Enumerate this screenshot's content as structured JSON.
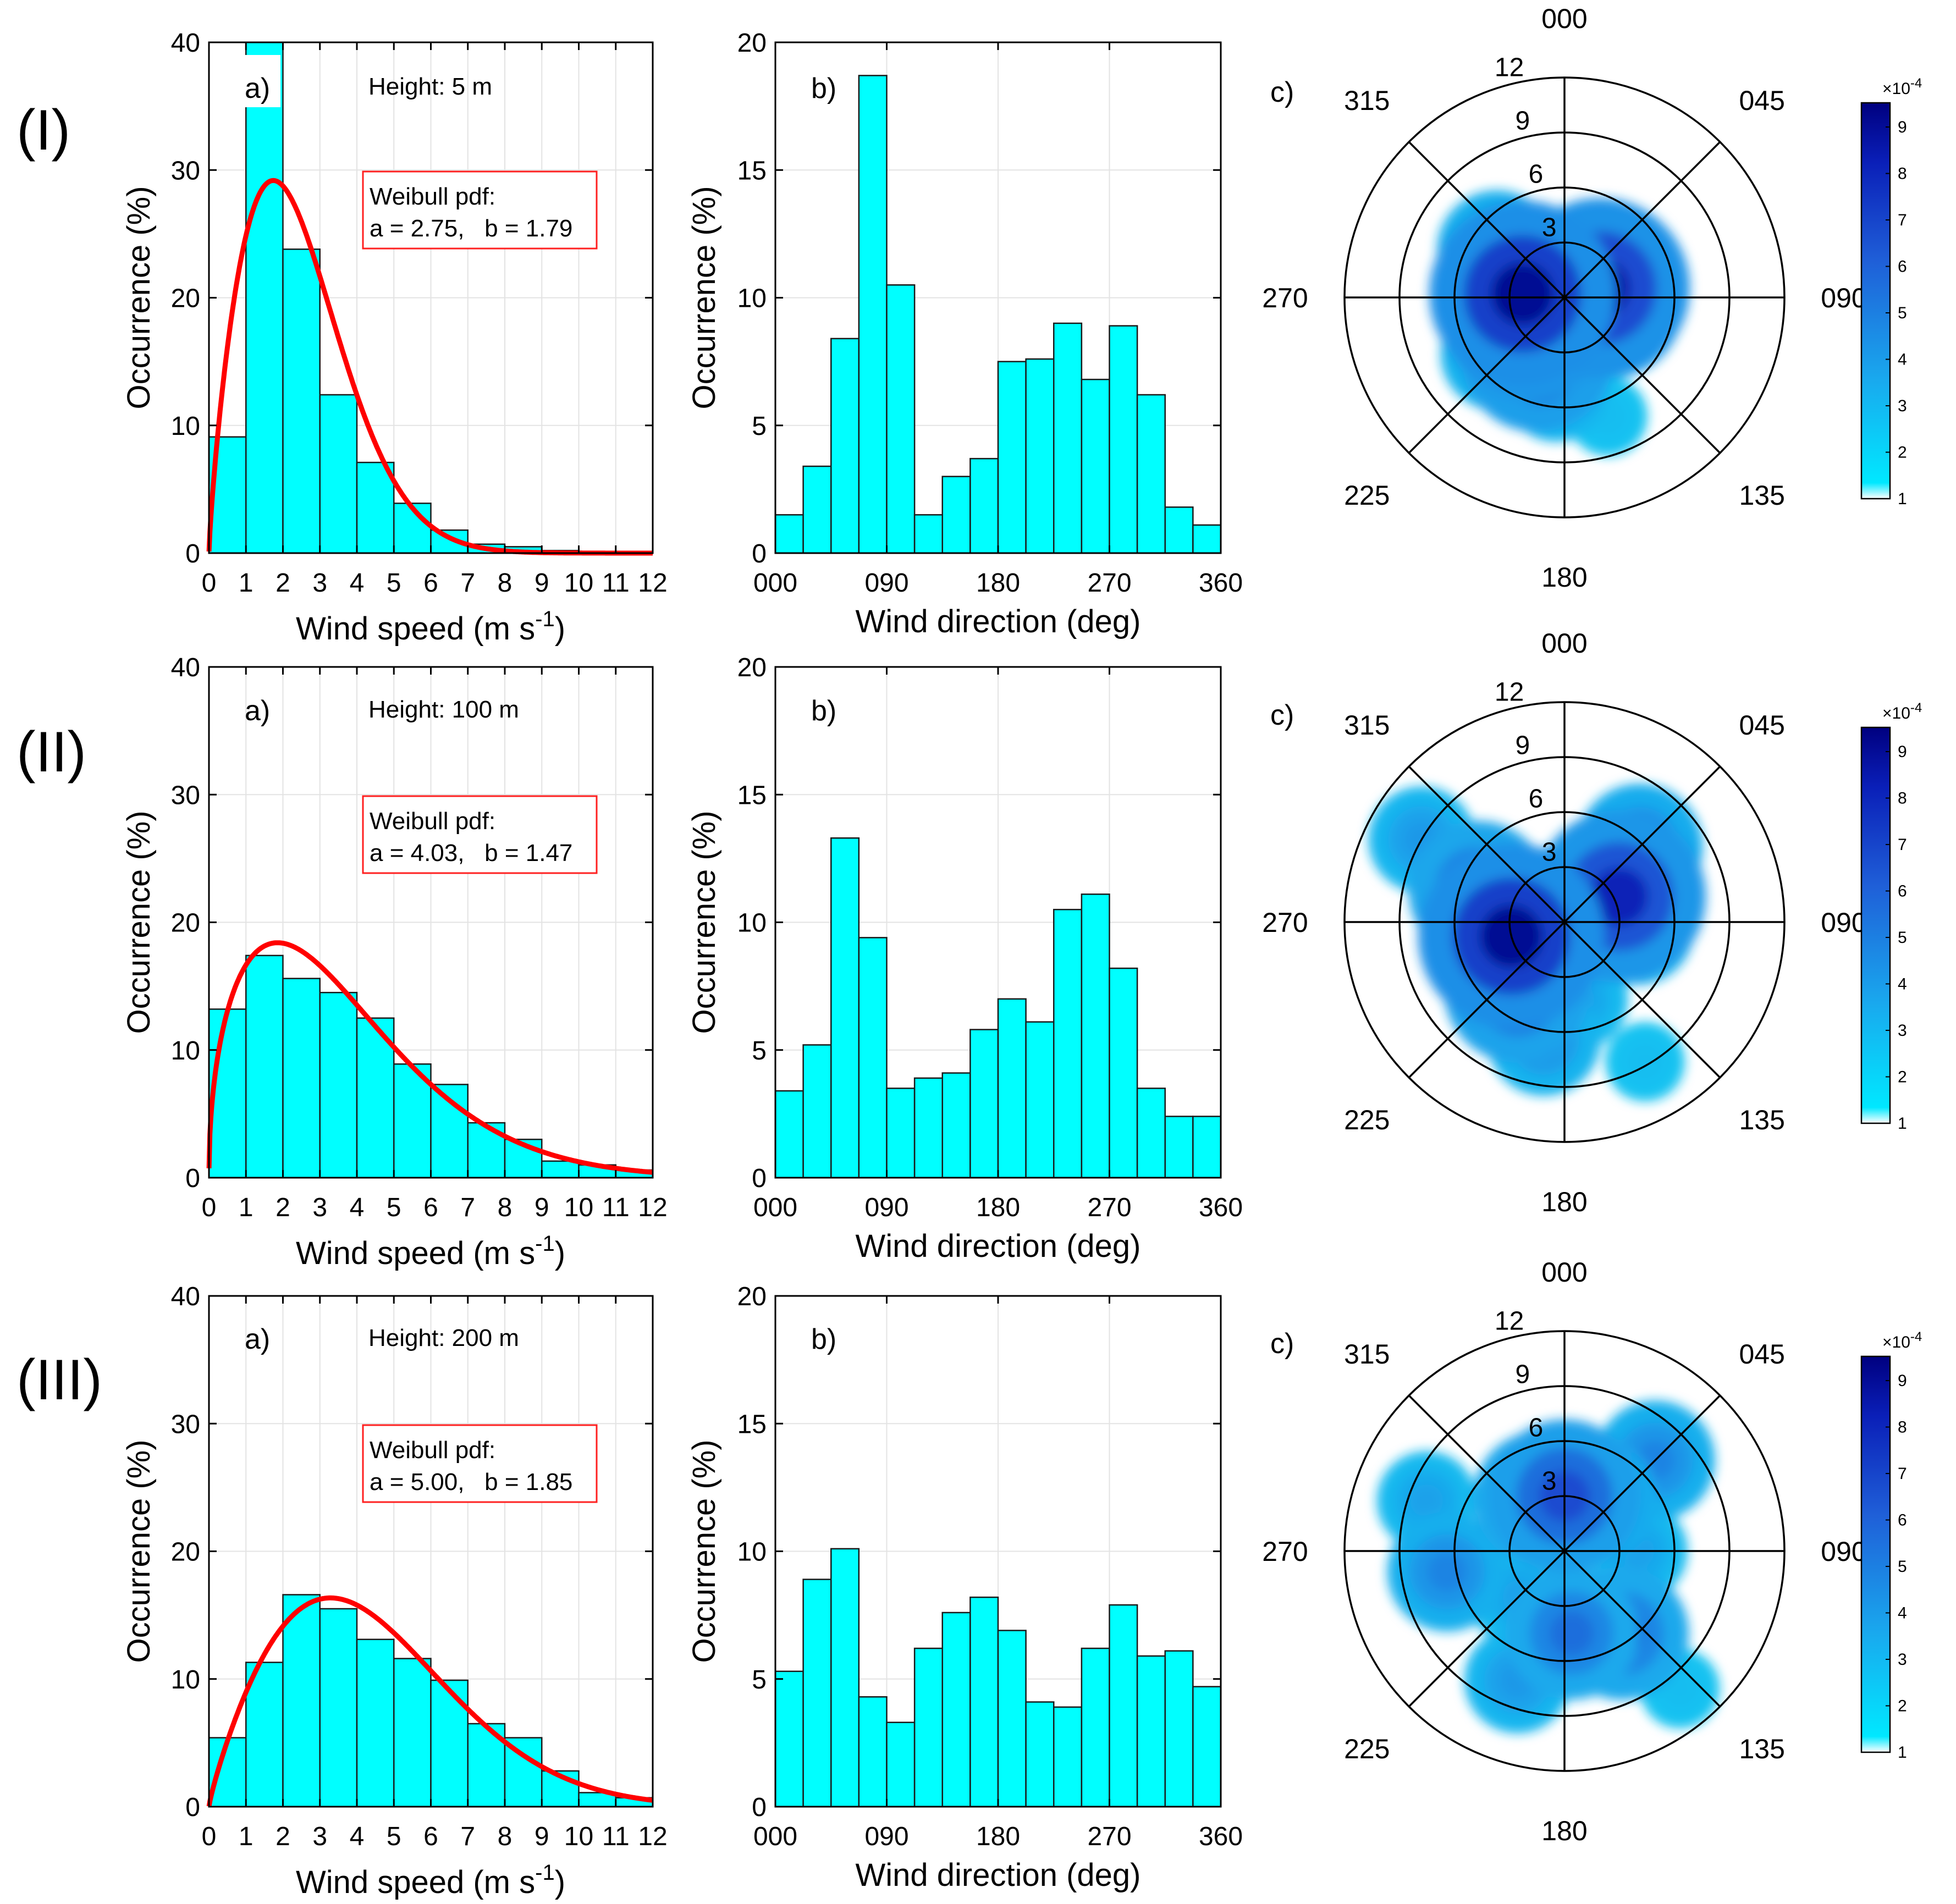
{
  "colors": {
    "bar_fill": "#00ffff",
    "bar_edge": "#1a1a1a",
    "weibull_line": "#ff0000",
    "weibull_box_edge": "#ff2020",
    "grid": "#e3e3e3",
    "colormap_low": "#19c6f2",
    "colormap_high": "#000080"
  },
  "rows": [
    {
      "label": "(I)",
      "speed": {
        "panel_label": "a)",
        "height_label": "Height: 5 m",
        "weibull_title": "Weibull pdf:",
        "weibull_params": "a = 2.75,   b = 1.79",
        "weibull_a": 2.75,
        "weibull_b": 1.79
      },
      "direction": {
        "panel_label": "b)"
      },
      "rose": {
        "panel_label": "c)"
      }
    },
    {
      "label": "(II)",
      "speed": {
        "panel_label": "a)",
        "height_label": "Height: 100 m",
        "weibull_title": "Weibull pdf:",
        "weibull_params": "a = 4.03,   b = 1.47",
        "weibull_a": 4.03,
        "weibull_b": 1.47
      },
      "direction": {
        "panel_label": "b)"
      },
      "rose": {
        "panel_label": "c)"
      }
    },
    {
      "label": "(III)",
      "speed": {
        "panel_label": "a)",
        "height_label": "Height: 200 m",
        "weibull_title": "Weibull pdf:",
        "weibull_params": "a = 5.00,   b = 1.85",
        "weibull_a": 5.0,
        "weibull_b": 1.85
      },
      "direction": {
        "panel_label": "b)"
      },
      "rose": {
        "panel_label": "c)"
      }
    }
  ],
  "chart_data": [
    {
      "type": "bar",
      "name": "row-I-speed",
      "bin_edges": [
        0,
        1,
        2,
        3,
        4,
        5,
        6,
        7,
        8,
        9,
        10,
        11,
        12
      ],
      "values": [
        9.1,
        40.0,
        23.8,
        12.4,
        7.1,
        3.9,
        1.8,
        0.7,
        0.5,
        0.2,
        0.1,
        0.1
      ],
      "xlabel": "Wind speed (m s",
      "xlabel_sup": "-1",
      "xlabel_end": ")",
      "ylabel": "Occurrence (%)",
      "xlim": [
        0,
        12
      ],
      "ylim": [
        0,
        40
      ],
      "xticks": [
        "0",
        "1",
        "2",
        "3",
        "4",
        "5",
        "6",
        "7",
        "8",
        "9",
        "10",
        "11",
        "12"
      ],
      "yticks": [
        "0",
        "10",
        "20",
        "30",
        "40"
      ],
      "grid": true
    },
    {
      "type": "bar",
      "name": "row-I-direction",
      "bin_edges": [
        0,
        22.5,
        45,
        67.5,
        90,
        112.5,
        135,
        157.5,
        180,
        202.5,
        225,
        247.5,
        270,
        292.5,
        315,
        337.5,
        360
      ],
      "values": [
        1.5,
        3.4,
        8.4,
        18.7,
        10.5,
        1.5,
        3.0,
        3.7,
        7.5,
        7.6,
        9.0,
        6.8,
        8.9,
        6.2,
        1.8,
        1.1
      ],
      "xlabel": "Wind direction (deg)",
      "ylabel": "Occurrence (%)",
      "xlim": [
        0,
        360
      ],
      "ylim": [
        0,
        20
      ],
      "xticks": [
        "000",
        "090",
        "180",
        "270",
        "360"
      ],
      "yticks": [
        "0",
        "5",
        "10",
        "15",
        "20"
      ],
      "grid": true
    },
    {
      "type": "heatmap",
      "name": "row-I-polar-density",
      "direction_labels": [
        "000",
        "045",
        "090",
        "135",
        "180",
        "225",
        "270",
        "315"
      ],
      "radial_ticks": [
        "3",
        "6",
        "9",
        "12"
      ],
      "rmax": 12,
      "colorbar_ticks": [
        "1",
        "2",
        "3",
        "4",
        "5",
        "6",
        "7",
        "8",
        "9"
      ],
      "colorbar_multiplier": "×10",
      "colorbar_multiplier_exp": "-4",
      "blobs": [
        {
          "dir": 275,
          "speed": 2.3,
          "density": 9.5
        },
        {
          "dir": 245,
          "speed": 2.2,
          "density": 8.5
        },
        {
          "dir": 205,
          "speed": 3.5,
          "density": 7.0
        },
        {
          "dir": 75,
          "speed": 2.0,
          "density": 9.0
        },
        {
          "dir": 100,
          "speed": 2.5,
          "density": 6.5
        },
        {
          "dir": 305,
          "speed": 4.5,
          "density": 4.5
        },
        {
          "dir": 230,
          "speed": 4.8,
          "density": 4.0
        },
        {
          "dir": 185,
          "speed": 5.0,
          "density": 3.5
        },
        {
          "dir": 35,
          "speed": 2.0,
          "density": 3.0
        },
        {
          "dir": 160,
          "speed": 6.9,
          "density": 1.5
        }
      ]
    },
    {
      "type": "bar",
      "name": "row-II-speed",
      "bin_edges": [
        0,
        1,
        2,
        3,
        4,
        5,
        6,
        7,
        8,
        9,
        10,
        11,
        12
      ],
      "values": [
        13.2,
        17.4,
        15.6,
        14.5,
        12.5,
        8.9,
        7.3,
        4.3,
        3.0,
        1.3,
        1.0,
        0.6
      ],
      "xlabel": "Wind speed (m s",
      "xlabel_sup": "-1",
      "xlabel_end": ")",
      "ylabel": "Occurrence (%)",
      "xlim": [
        0,
        12
      ],
      "ylim": [
        0,
        40
      ],
      "xticks": [
        "0",
        "1",
        "2",
        "3",
        "4",
        "5",
        "6",
        "7",
        "8",
        "9",
        "10",
        "11",
        "12"
      ],
      "yticks": [
        "0",
        "10",
        "20",
        "30",
        "40"
      ],
      "grid": true
    },
    {
      "type": "bar",
      "name": "row-II-direction",
      "bin_edges": [
        0,
        22.5,
        45,
        67.5,
        90,
        112.5,
        135,
        157.5,
        180,
        202.5,
        225,
        247.5,
        270,
        292.5,
        315,
        337.5,
        360
      ],
      "values": [
        3.4,
        5.2,
        13.3,
        9.4,
        3.5,
        3.9,
        4.1,
        5.8,
        7.0,
        6.1,
        10.5,
        11.1,
        8.2,
        3.5,
        2.4,
        2.4
      ],
      "xlabel": "Wind direction (deg)",
      "ylabel": "Occurrence (%)",
      "xlim": [
        0,
        360
      ],
      "ylim": [
        0,
        20
      ],
      "xticks": [
        "000",
        "090",
        "180",
        "270",
        "360"
      ],
      "yticks": [
        "0",
        "5",
        "10",
        "15",
        "20"
      ],
      "grid": true
    },
    {
      "type": "heatmap",
      "name": "row-II-polar-density",
      "direction_labels": [
        "000",
        "045",
        "090",
        "135",
        "180",
        "225",
        "270",
        "315"
      ],
      "radial_ticks": [
        "3",
        "6",
        "9",
        "12"
      ],
      "rmax": 12,
      "colorbar_ticks": [
        "1",
        "2",
        "3",
        "4",
        "5",
        "6",
        "7",
        "8",
        "9"
      ],
      "colorbar_multiplier": "×10",
      "colorbar_multiplier_exp": "-4",
      "blobs": [
        {
          "dir": 255,
          "speed": 3.0,
          "density": 9.5
        },
        {
          "dir": 290,
          "speed": 5.0,
          "density": 6.0
        },
        {
          "dir": 65,
          "speed": 3.3,
          "density": 8.5
        },
        {
          "dir": 45,
          "speed": 5.8,
          "density": 5.0
        },
        {
          "dir": 95,
          "speed": 4.0,
          "density": 4.0
        },
        {
          "dir": 215,
          "speed": 4.5,
          "density": 6.5
        },
        {
          "dir": 190,
          "speed": 6.5,
          "density": 4.0
        },
        {
          "dir": 300,
          "speed": 9.0,
          "density": 3.5
        },
        {
          "dir": 170,
          "speed": 4.3,
          "density": 3.0
        },
        {
          "dir": 150,
          "speed": 8.8,
          "density": 1.5
        },
        {
          "dir": 0,
          "speed": 1.5,
          "density": 3.0
        }
      ]
    },
    {
      "type": "bar",
      "name": "row-III-speed",
      "bin_edges": [
        0,
        1,
        2,
        3,
        4,
        5,
        6,
        7,
        8,
        9,
        10,
        11,
        12
      ],
      "values": [
        5.4,
        11.3,
        16.6,
        15.5,
        13.1,
        11.6,
        9.9,
        6.5,
        5.4,
        2.8,
        1.1,
        0.7
      ],
      "xlabel": "Wind speed (m s",
      "xlabel_sup": "-1",
      "xlabel_end": ")",
      "ylabel": "Occurrence (%)",
      "xlim": [
        0,
        12
      ],
      "ylim": [
        0,
        40
      ],
      "xticks": [
        "0",
        "1",
        "2",
        "3",
        "4",
        "5",
        "6",
        "7",
        "8",
        "9",
        "10",
        "11",
        "12"
      ],
      "yticks": [
        "0",
        "10",
        "20",
        "30",
        "40"
      ],
      "grid": true
    },
    {
      "type": "bar",
      "name": "row-III-direction",
      "bin_edges": [
        0,
        22.5,
        45,
        67.5,
        90,
        112.5,
        135,
        157.5,
        180,
        202.5,
        225,
        247.5,
        270,
        292.5,
        315,
        337.5,
        360
      ],
      "values": [
        5.3,
        8.9,
        10.1,
        4.3,
        3.3,
        6.2,
        7.6,
        8.2,
        6.9,
        4.1,
        3.9,
        6.2,
        7.9,
        5.9,
        6.1,
        4.7
      ],
      "xlabel": "Wind direction (deg)",
      "ylabel": "Occurrence (%)",
      "xlim": [
        0,
        360
      ],
      "ylim": [
        0,
        20
      ],
      "xticks": [
        "000",
        "090",
        "180",
        "270",
        "360"
      ],
      "yticks": [
        "0",
        "5",
        "10",
        "15",
        "20"
      ],
      "grid": true
    },
    {
      "type": "heatmap",
      "name": "row-III-polar-density",
      "direction_labels": [
        "000",
        "045",
        "090",
        "135",
        "180",
        "225",
        "270",
        "315"
      ],
      "radial_ticks": [
        "3",
        "6",
        "9",
        "12"
      ],
      "rmax": 12,
      "colorbar_ticks": [
        "1",
        "2",
        "3",
        "4",
        "5",
        "6",
        "7",
        "8",
        "9"
      ],
      "colorbar_multiplier": "×10",
      "colorbar_multiplier_exp": "-4",
      "blobs": [
        {
          "dir": 0,
          "speed": 3.0,
          "density": 7.0
        },
        {
          "dir": 335,
          "speed": 3.2,
          "density": 5.5
        },
        {
          "dir": 30,
          "speed": 3.2,
          "density": 5.0
        },
        {
          "dir": 45,
          "speed": 7.0,
          "density": 4.5
        },
        {
          "dir": 145,
          "speed": 5.5,
          "density": 5.5
        },
        {
          "dir": 175,
          "speed": 4.5,
          "density": 5.5
        },
        {
          "dir": 200,
          "speed": 7.5,
          "density": 3.5
        },
        {
          "dir": 260,
          "speed": 6.5,
          "density": 4.5
        },
        {
          "dir": 290,
          "speed": 8.0,
          "density": 3.0
        },
        {
          "dir": 225,
          "speed": 3.5,
          "density": 3.0
        },
        {
          "dir": 90,
          "speed": 4.0,
          "density": 3.0
        },
        {
          "dir": 140,
          "speed": 9.8,
          "density": 1.5
        }
      ]
    }
  ]
}
